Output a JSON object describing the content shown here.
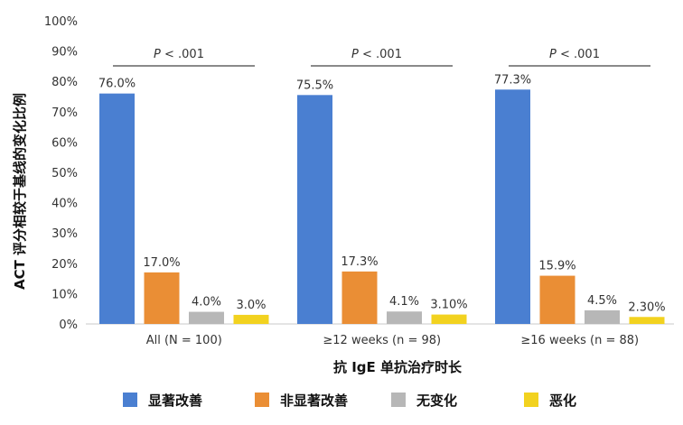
{
  "chart_data": {
    "type": "bar",
    "categories": [
      "All (N = 100)",
      "≥12 weeks (n = 98)",
      "≥16 weeks (n = 88)"
    ],
    "series": [
      {
        "name": "显著改善",
        "color": "#4a7fd1",
        "values": [
          76.0,
          75.5,
          77.3
        ],
        "labels": [
          "76.0%",
          "75.5%",
          "77.3%"
        ]
      },
      {
        "name": "非显著改善",
        "color": "#ea8e35",
        "values": [
          17.0,
          17.3,
          15.9
        ],
        "labels": [
          "17.0%",
          "17.3%",
          "15.9%"
        ]
      },
      {
        "name": "无变化",
        "color": "#b7b7b7",
        "values": [
          4.0,
          4.1,
          4.5
        ],
        "labels": [
          "4.0%",
          "4.1%",
          "4.5%"
        ]
      },
      {
        "name": "恶化",
        "color": "#f2d21f",
        "values": [
          3.0,
          3.1,
          2.3
        ],
        "labels": [
          "3.0%",
          "3.10%",
          "2.30%"
        ]
      }
    ],
    "significance": [
      {
        "p_prefix": "P",
        "p_rest": " < .001"
      },
      {
        "p_prefix": "P",
        "p_rest": " < .001"
      },
      {
        "p_prefix": "P",
        "p_rest": " < .001"
      }
    ],
    "xlabel": "抗 IgE 单抗治疗时长",
    "ylabel": "ACT 评分相较于基线的变化比例",
    "ylim": [
      0,
      100
    ],
    "yticks": [
      "0%",
      "10%",
      "20%",
      "30%",
      "40%",
      "50%",
      "60%",
      "70%",
      "80%",
      "90%",
      "100%"
    ],
    "grid": false,
    "legend_position": "bottom"
  }
}
